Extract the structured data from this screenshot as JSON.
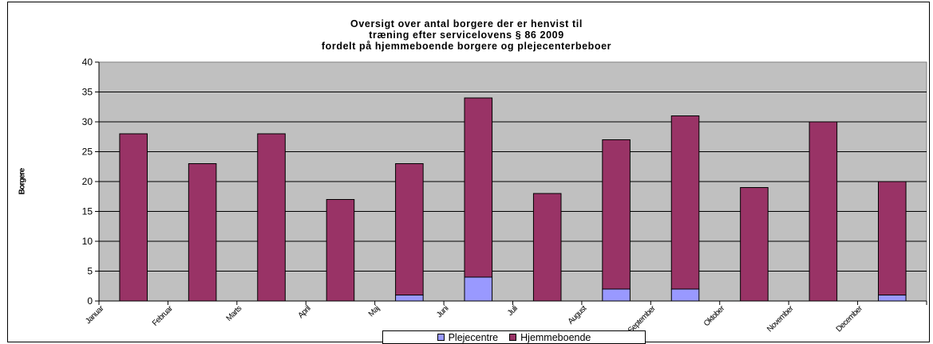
{
  "chart_data": {
    "type": "bar",
    "stacked": true,
    "title_lines": [
      "Oversigt over antal borgere der er henvist til",
      "træning efter servicelovens § 86 2009",
      "fordelt på hjemmeboende borgere og plejecenterbeboer"
    ],
    "ylabel": "Borgere",
    "xlabel": "",
    "ylim": [
      0,
      40
    ],
    "yticks": [
      "0",
      "5",
      "10",
      "15",
      "20",
      "25",
      "30",
      "35",
      "40"
    ],
    "grid": true,
    "legend_position": "bottom",
    "categories": [
      "Januar",
      "Februar",
      "Marts",
      "April",
      "Maj",
      "Juni",
      "Juli",
      "August",
      "September",
      "Oktober",
      "November",
      "December"
    ],
    "series": [
      {
        "name": "Plejecentre",
        "color": "#9999ff",
        "values": [
          0,
          0,
          0,
          0,
          1,
          4,
          0,
          2,
          2,
          0,
          0,
          1
        ]
      },
      {
        "name": "Hjemmeboende",
        "color": "#993366",
        "values": [
          28,
          23,
          28,
          17,
          22,
          30,
          18,
          25,
          29,
          19,
          30,
          19
        ]
      }
    ],
    "plot_background": "#c0c0c0"
  }
}
